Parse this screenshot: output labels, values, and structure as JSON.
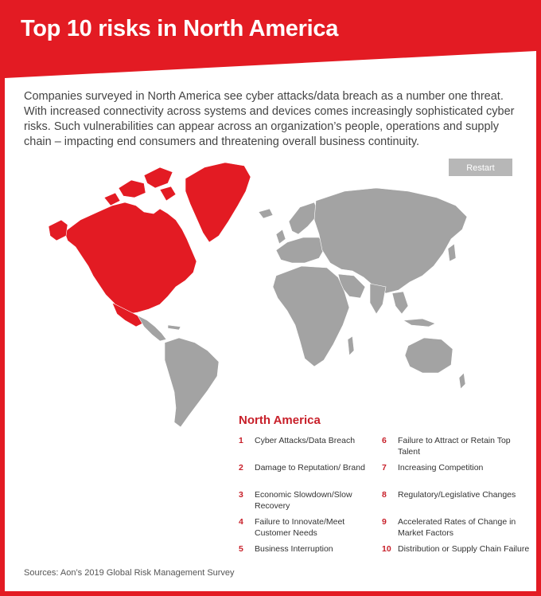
{
  "header": {
    "title": "Top 10 risks in North America"
  },
  "intro": {
    "text": "Companies surveyed in North America see cyber attacks/data breach as a number one threat. With increased connectivity across systems and devices comes increasingly sophisticated cyber risks. Such vulnerabilities can appear across an organization’s people, operations and supply chain – impacting end consumers and threatening overall business continuity."
  },
  "controls": {
    "restart_label": "Restart"
  },
  "map": {
    "highlighted_region": "North America",
    "highlight_color": "#e31b23",
    "land_color": "#a3a3a3"
  },
  "region": {
    "name": "North America"
  },
  "risks": [
    {
      "num": "1",
      "label": "Cyber Attacks/Data Breach"
    },
    {
      "num": "2",
      "label": "Damage to Reputation/ Brand"
    },
    {
      "num": "3",
      "label": "Economic Slowdown/Slow Recovery"
    },
    {
      "num": "4",
      "label": "Failure to Innovate/Meet Customer Needs"
    },
    {
      "num": "5",
      "label": "Business Interruption"
    },
    {
      "num": "6",
      "label": "Failure to Attract or Retain Top Talent"
    },
    {
      "num": "7",
      "label": "Increasing Competition"
    },
    {
      "num": "8",
      "label": "Regulatory/Legislative Changes"
    },
    {
      "num": "9",
      "label": "Accelerated Rates of Change in Market Factors"
    },
    {
      "num": "10",
      "label": "Distribution or Supply Chain Failure"
    }
  ],
  "footer": {
    "source": "Sources: Aon’s 2019 Global Risk Management Survey"
  },
  "colors": {
    "accent": "#e31b23",
    "text": "#444444"
  }
}
